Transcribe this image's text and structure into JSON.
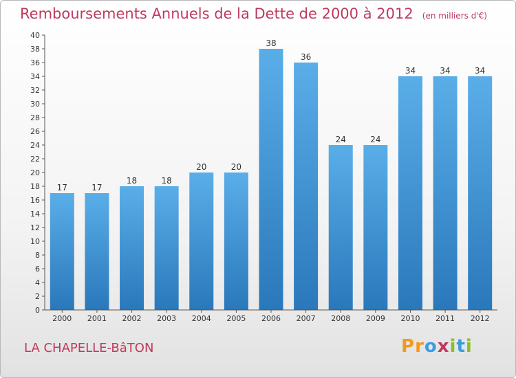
{
  "header": {
    "title": "Remboursements Annuels de la Dette de 2000 à 2012",
    "subtitle": "(en milliers d'€)"
  },
  "footer": {
    "commune": "LA CHAPELLE-BâTON",
    "brand": "Proxiti"
  },
  "colors": {
    "bar_top": "#5aaee8",
    "bar_bottom": "#2a78bb",
    "title": "#c0395e"
  },
  "chart_data": {
    "type": "bar",
    "title": "Remboursements Annuels de la Dette de 2000 à 2012",
    "subtitle": "(en milliers d'€)",
    "categories": [
      "2000",
      "2001",
      "2002",
      "2003",
      "2004",
      "2005",
      "2006",
      "2007",
      "2008",
      "2009",
      "2010",
      "2011",
      "2012"
    ],
    "values": [
      17,
      17,
      18,
      18,
      20,
      20,
      38,
      36,
      24,
      24,
      34,
      34,
      34
    ],
    "data_labels": [
      "17",
      "17",
      "18",
      "18",
      "20",
      "20",
      "38",
      "36",
      "24",
      "24",
      "34",
      "34",
      "34"
    ],
    "ylim": [
      0,
      40
    ],
    "y_ticks": [
      "0",
      "2",
      "4",
      "6",
      "8",
      "10",
      "12",
      "14",
      "16",
      "18",
      "20",
      "22",
      "24",
      "26",
      "28",
      "30",
      "32",
      "34",
      "36",
      "38",
      "40"
    ],
    "grid": false,
    "xlabel": "",
    "ylabel": ""
  }
}
